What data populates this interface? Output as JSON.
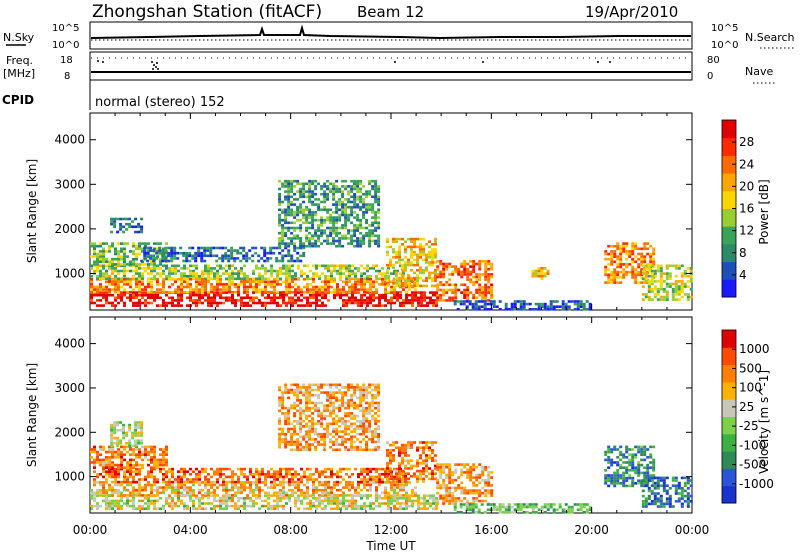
{
  "header": {
    "title": "Zhongshan Station (fitACF)",
    "beam": "Beam 12",
    "date": "19/Apr/2010"
  },
  "status_panels": {
    "nsky": {
      "label": "N.Sky",
      "top_tick": "10^5",
      "bottom_tick": "10^0"
    },
    "nsearch": {
      "label": "N.Search",
      "top_tick": "10^5",
      "bottom_tick": "10^0"
    },
    "freq": {
      "label_line1": "Freq.",
      "label_line2": "[MHz]",
      "top_tick": "18",
      "bottom_tick": "8"
    },
    "nave": {
      "label": "Nave",
      "top_tick": "80",
      "bottom_tick": "0"
    },
    "cpid": {
      "label": "CPID",
      "mode": "normal (stereo) 152"
    }
  },
  "chart_data": [
    {
      "type": "heatmap",
      "title": "",
      "ylabel": "Slant Range [km]",
      "xlabel": "",
      "ylim": [
        180,
        4600
      ],
      "y_ticks": [
        "1000",
        "2000",
        "3000",
        "4000"
      ],
      "x_hours": [
        0,
        24
      ],
      "colorbar": {
        "label": "Power [dB]",
        "ticks": [
          "4",
          "8",
          "12",
          "16",
          "20",
          "24",
          "28"
        ],
        "colors": [
          "#1a1aff",
          "#1f4fb8",
          "#2a8a6a",
          "#3aa35a",
          "#9acd32",
          "#ffd700",
          "#ffa500",
          "#ff6a00",
          "#ff2a00",
          "#e00000"
        ]
      },
      "regions": [
        {
          "hours": [
            0.0,
            13.8
          ],
          "range_km": [
            250,
            600
          ],
          "level": 0.95
        },
        {
          "hours": [
            0.0,
            13.0
          ],
          "range_km": [
            600,
            900
          ],
          "level": 0.7
        },
        {
          "hours": [
            0.0,
            12.5
          ],
          "range_km": [
            900,
            1200
          ],
          "level": 0.45
        },
        {
          "hours": [
            0.0,
            3.0
          ],
          "range_km": [
            1200,
            1700
          ],
          "level": 0.4
        },
        {
          "hours": [
            0.8,
            2.0
          ],
          "range_km": [
            1900,
            2250
          ],
          "level": 0.25
        },
        {
          "hours": [
            2.0,
            8.5
          ],
          "range_km": [
            1300,
            1600
          ],
          "level": 0.2
        },
        {
          "hours": [
            7.5,
            11.5
          ],
          "range_km": [
            1600,
            3100
          ],
          "level": 0.3
        },
        {
          "hours": [
            11.8,
            13.8
          ],
          "range_km": [
            700,
            1800
          ],
          "level": 0.6
        },
        {
          "hours": [
            13.8,
            16.0
          ],
          "range_km": [
            400,
            1300
          ],
          "level": 0.75
        },
        {
          "hours": [
            14.5,
            20.0
          ],
          "range_km": [
            200,
            400
          ],
          "level": 0.15
        },
        {
          "hours": [
            17.6,
            18.2
          ],
          "range_km": [
            900,
            1200
          ],
          "level": 0.6
        },
        {
          "hours": [
            20.5,
            22.5
          ],
          "range_km": [
            800,
            1700
          ],
          "level": 0.7
        },
        {
          "hours": [
            22.0,
            24.0
          ],
          "range_km": [
            400,
            1200
          ],
          "level": 0.5
        }
      ]
    },
    {
      "type": "heatmap",
      "title": "",
      "ylabel": "Slant Range [km]",
      "xlabel": "Time UT",
      "ylim": [
        180,
        4600
      ],
      "y_ticks": [
        "1000",
        "2000",
        "3000",
        "4000"
      ],
      "x_ticks": [
        "00:00",
        "04:00",
        "08:00",
        "12:00",
        "16:00",
        "20:00",
        "00:00"
      ],
      "x_hours": [
        0,
        24
      ],
      "colorbar": {
        "label": "Velocity [m s^-1]",
        "ticks": [
          "1000",
          "500",
          "100",
          "25",
          "-25",
          "-100",
          "-500",
          "-1000"
        ],
        "colors": [
          "#1a33cc",
          "#2a55d8",
          "#2e8b57",
          "#3cb043",
          "#7cd14a",
          "#c8c8b8",
          "#ffb000",
          "#ff7f00",
          "#ff4a00",
          "#e00000"
        ]
      },
      "regions": [
        {
          "hours": [
            0.0,
            13.8
          ],
          "range_km": [
            250,
            600
          ],
          "level": 0.55
        },
        {
          "hours": [
            0.0,
            13.0
          ],
          "range_km": [
            600,
            900
          ],
          "level": 0.65
        },
        {
          "hours": [
            0.0,
            12.5
          ],
          "range_km": [
            900,
            1200
          ],
          "level": 0.8
        },
        {
          "hours": [
            0.0,
            3.0
          ],
          "range_km": [
            1200,
            1700
          ],
          "level": 0.75
        },
        {
          "hours": [
            0.8,
            2.0
          ],
          "range_km": [
            1700,
            2250
          ],
          "level": 0.5
        },
        {
          "hours": [
            7.5,
            11.5
          ],
          "range_km": [
            1600,
            3100
          ],
          "level": 0.7
        },
        {
          "hours": [
            11.8,
            13.8
          ],
          "range_km": [
            900,
            1800
          ],
          "level": 0.75
        },
        {
          "hours": [
            13.8,
            16.0
          ],
          "range_km": [
            400,
            1300
          ],
          "level": 0.7
        },
        {
          "hours": [
            14.5,
            20.0
          ],
          "range_km": [
            200,
            400
          ],
          "level": 0.4
        },
        {
          "hours": [
            20.5,
            22.5
          ],
          "range_km": [
            800,
            1700
          ],
          "level": 0.25
        },
        {
          "hours": [
            22.0,
            24.0
          ],
          "range_km": [
            300,
            1000
          ],
          "level": 0.2
        }
      ]
    }
  ]
}
